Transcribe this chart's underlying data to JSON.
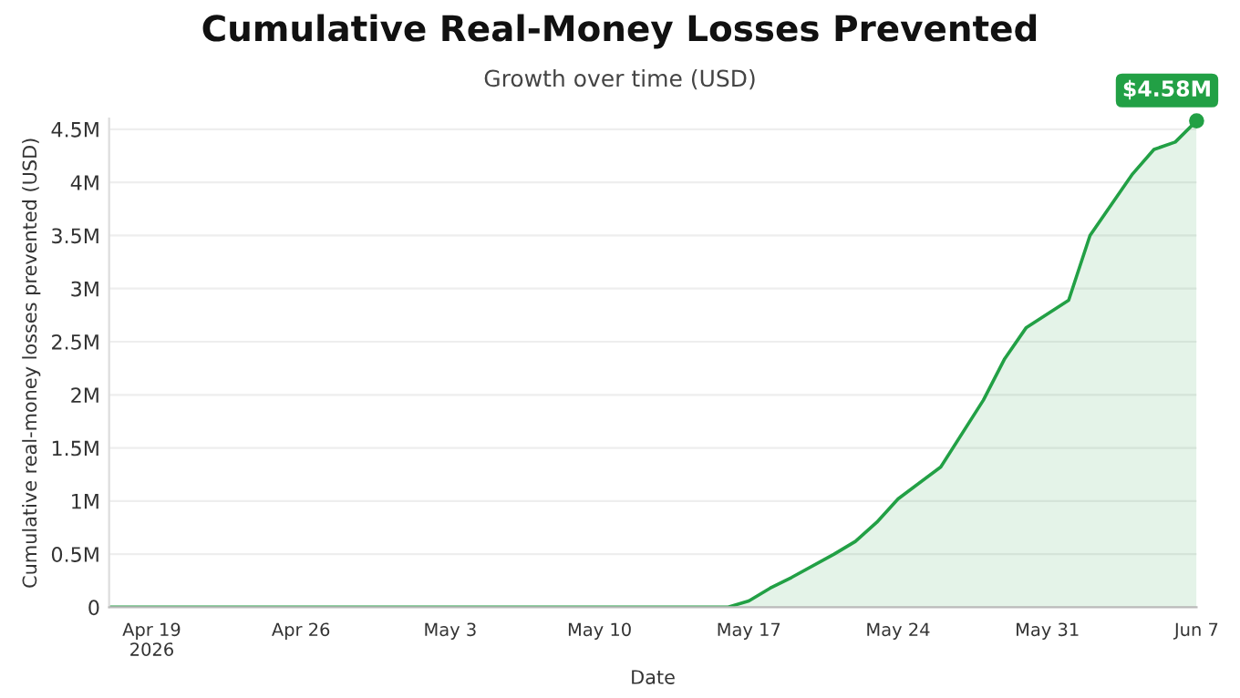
{
  "chart_data": {
    "type": "area",
    "title": "Cumulative Real-Money Losses Prevented",
    "subtitle": "Growth over time (USD)",
    "xlabel": "Date",
    "ylabel": "Cumulative real-money losses prevented (USD)",
    "x": [
      "2026-04-17",
      "2026-05-16",
      "2026-05-17",
      "2026-05-18",
      "2026-05-19",
      "2026-05-21",
      "2026-05-22",
      "2026-05-23",
      "2026-05-24",
      "2026-05-26",
      "2026-05-28",
      "2026-05-29",
      "2026-05-30",
      "2026-06-01",
      "2026-06-02",
      "2026-06-04",
      "2026-06-05",
      "2026-06-06",
      "2026-06-07"
    ],
    "series": [
      {
        "color": "#22a045",
        "values": [
          0,
          0,
          60000,
          180000,
          280000,
          500000,
          620000,
          800000,
          1020000,
          1320000,
          1950000,
          2340000,
          2630000,
          2890000,
          3500000,
          4080000,
          4310000,
          4380000,
          4580000
        ]
      }
    ],
    "xlim": [
      "2026-04-17",
      "2026-06-07"
    ],
    "xticks": [
      {
        "value": "2026-04-19",
        "label": "Apr 19\n2026"
      },
      {
        "value": "2026-04-26",
        "label": "Apr 26"
      },
      {
        "value": "2026-05-03",
        "label": "May 3"
      },
      {
        "value": "2026-05-10",
        "label": "May 10"
      },
      {
        "value": "2026-05-17",
        "label": "May 17"
      },
      {
        "value": "2026-05-24",
        "label": "May 24"
      },
      {
        "value": "2026-05-31",
        "label": "May 31"
      },
      {
        "value": "2026-06-07",
        "label": "Jun 7"
      }
    ],
    "ylim": [
      0,
      4600000
    ],
    "yticks": [
      0,
      {
        "value": 500000,
        "label": "0.5M"
      },
      {
        "value": 1000000,
        "label": "1M"
      },
      {
        "value": 1500000,
        "label": "1.5M"
      },
      {
        "value": 2000000,
        "label": "2M"
      },
      {
        "value": 2500000,
        "label": "2.5M"
      },
      {
        "value": 3000000,
        "label": "3M"
      },
      {
        "value": 3500000,
        "label": "3.5M"
      },
      {
        "value": 4000000,
        "label": "4M"
      },
      {
        "value": 4500000,
        "label": "4.5M"
      }
    ],
    "grid": "y",
    "annotations": [
      {
        "text": "$4.58M",
        "x": "2026-06-07",
        "y": 4580000
      }
    ]
  }
}
